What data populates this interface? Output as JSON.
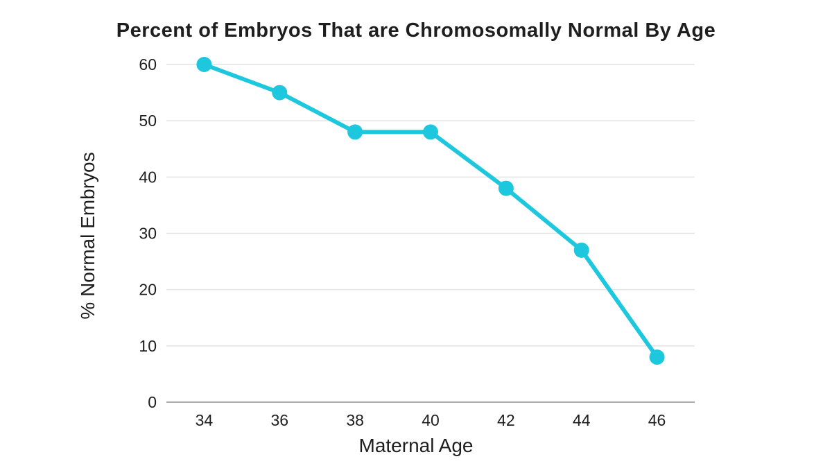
{
  "page": {
    "background": "#ffffff"
  },
  "chart_data": {
    "type": "line",
    "title": "Percent of Embryos That are Chromosomally Normal By Age",
    "xlabel": "Maternal Age",
    "ylabel": "% Normal Embryos",
    "categories": [
      "34",
      "36",
      "38",
      "40",
      "42",
      "44",
      "46"
    ],
    "series": [
      {
        "name": "% Normal Embryos",
        "values": [
          60,
          55,
          48,
          48,
          38,
          27,
          8
        ]
      }
    ],
    "ylim": [
      0,
      60
    ],
    "yticks": [
      0,
      10,
      20,
      30,
      40,
      50,
      60
    ],
    "grid": "horizontal-only",
    "legend": "none",
    "colors": {
      "line": "#1DC8DE",
      "marker": "#1DC8DE",
      "gridline": "#e3e3e3",
      "axis_line": "#ababab",
      "text": "#1e1e1e",
      "background": "#ffffff"
    }
  }
}
